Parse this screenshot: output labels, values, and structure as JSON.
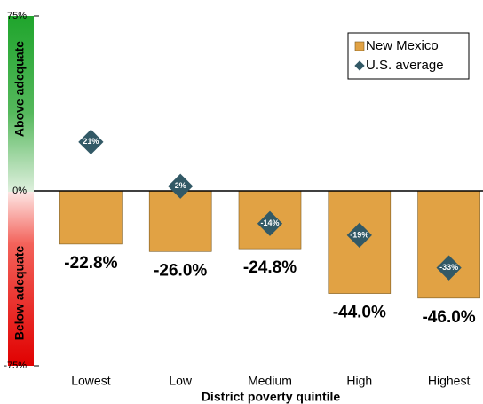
{
  "chart_data": {
    "type": "bar",
    "x_label": "District poverty quintile",
    "annotations": [
      "Above adequate",
      "Below adequate"
    ],
    "categories": [
      "Lowest",
      "Low",
      "Medium",
      "High",
      "Highest"
    ],
    "series": [
      {
        "name": "New Mexico",
        "color": "#e1a244",
        "values": [
          -22.8,
          -26.0,
          -24.8,
          -44.0,
          -46.0
        ],
        "value_labels": [
          "-22.8%",
          "-26.0%",
          "-24.8%",
          "-44.0%",
          "-46.0%"
        ]
      },
      {
        "name": "U.S. average",
        "color": "#325966",
        "values": [
          21,
          2,
          -14,
          -19,
          -33
        ],
        "value_labels": [
          "21%",
          "2%",
          "-14%",
          "-19%",
          "-33%"
        ]
      }
    ],
    "ylim": [
      -75,
      75
    ],
    "yticks": [
      {
        "value": 75,
        "label": "75%"
      },
      {
        "value": 0,
        "label": "0%"
      },
      {
        "value": -75,
        "label": "-75%"
      }
    ],
    "legend": "top-right"
  }
}
